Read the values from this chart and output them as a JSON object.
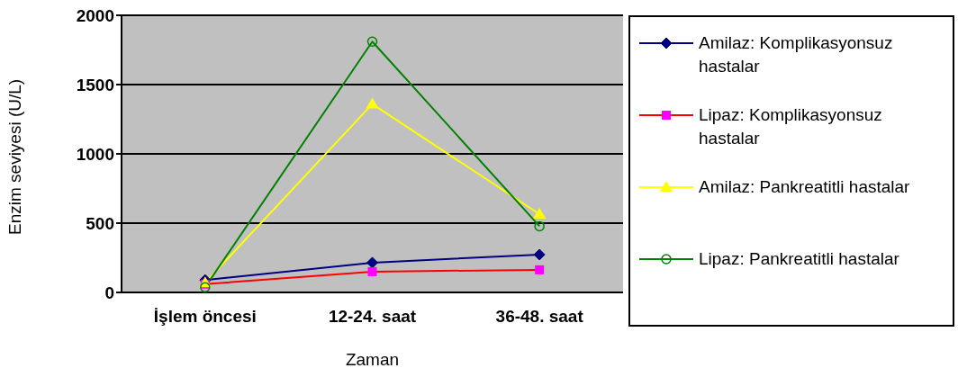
{
  "chart_data": {
    "type": "line",
    "xlabel": "Zaman",
    "ylabel": "Enzim seviyesi (U/L)",
    "categories": [
      "İşlem öncesi",
      "12-24. saat",
      "36-48. saat"
    ],
    "series": [
      {
        "name": "Amilaz: Komplikasyonsuz hastalar",
        "color": "#000080",
        "marker": "diamond",
        "values": [
          90,
          215,
          273
        ]
      },
      {
        "name": "Lipaz: Komplikasyonsuz hastalar",
        "color": "#ff0000",
        "marker": "square",
        "values": [
          60,
          150,
          163
        ]
      },
      {
        "name": "Amilaz: Pankreatitli hastalar",
        "color": "#ffff00",
        "marker": "triangle",
        "values": [
          70,
          1360,
          565
        ]
      },
      {
        "name": "Lipaz: Pankreatitli hastalar",
        "color": "#008000",
        "marker": "circle",
        "values": [
          38,
          1810,
          478
        ]
      }
    ],
    "ylim": [
      0,
      2000
    ],
    "yticks": [
      0,
      500,
      1000,
      1500,
      2000
    ],
    "grid": "y",
    "legend": "right",
    "line_style": "solid"
  }
}
